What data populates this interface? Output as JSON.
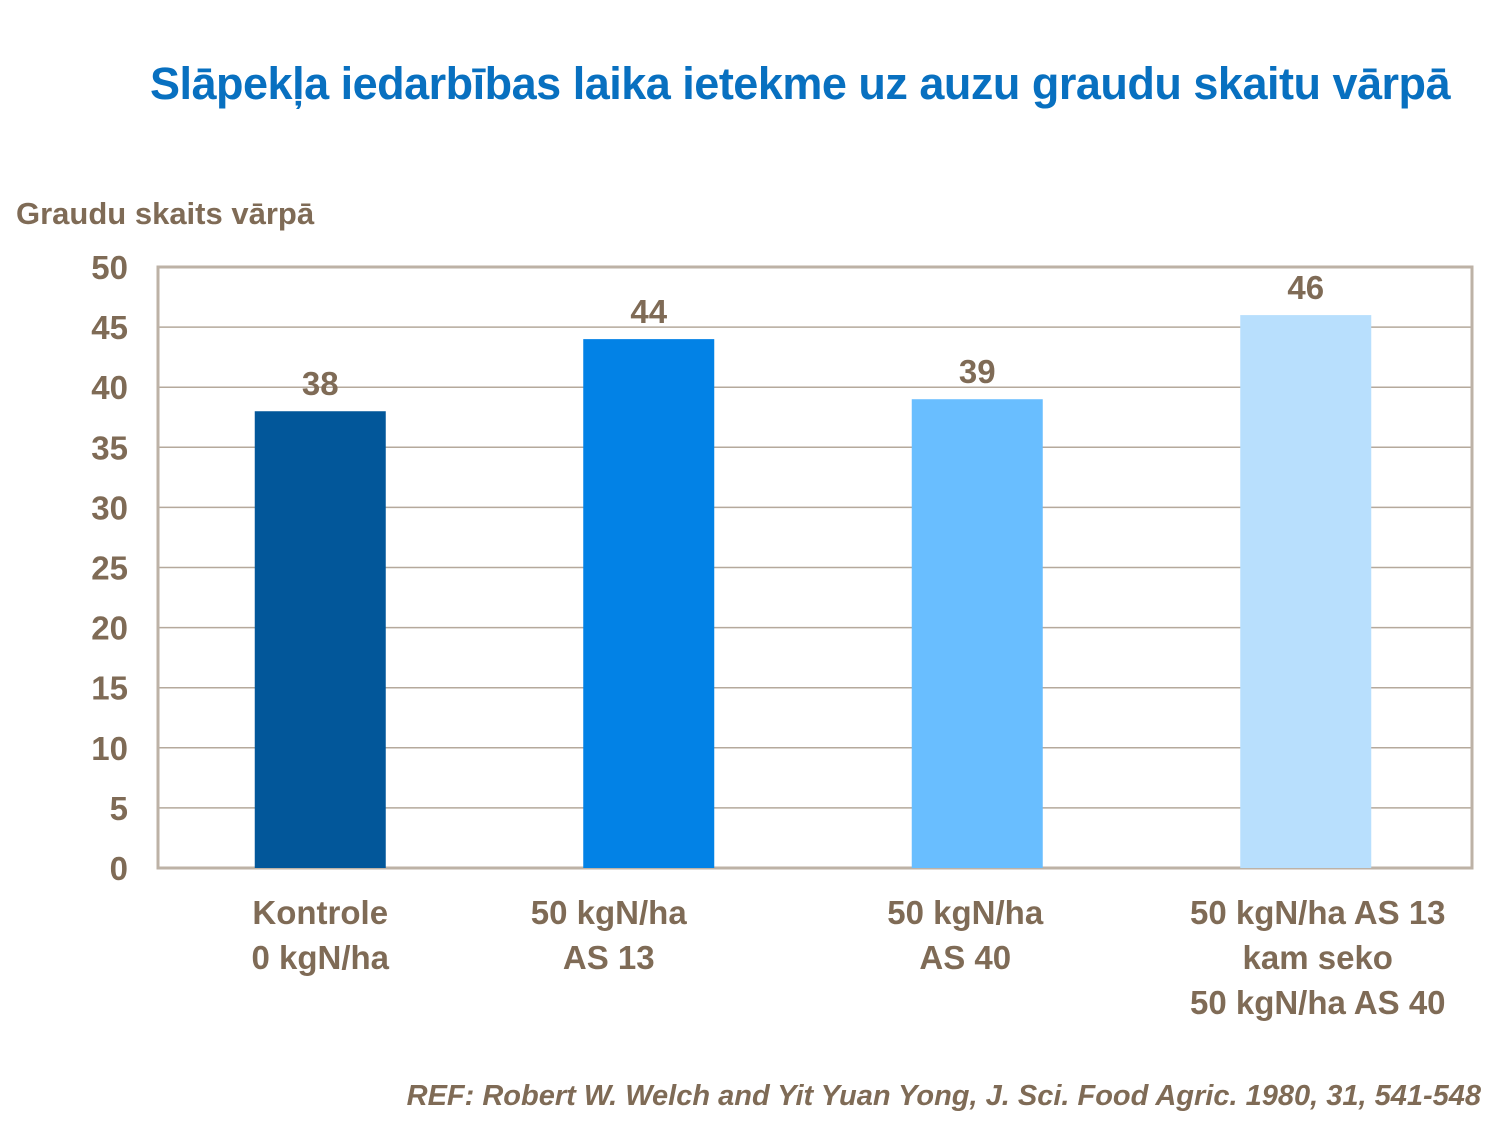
{
  "chart_data": {
    "type": "bar",
    "title": "Slāpekļa iedarbības laika ietekme uz auzu graudu skaitu vārpā",
    "ylabel": "Graudu skaits vārpā",
    "xlabel": "",
    "categories": [
      [
        "Kontrole",
        "0 kgN/ha"
      ],
      [
        "50 kgN/ha",
        "AS 13"
      ],
      [
        "50 kgN/ha",
        "AS 40"
      ],
      [
        "50 kgN/ha AS 13",
        "kam seko",
        "50 kgN/ha AS 40"
      ]
    ],
    "values": [
      38,
      44,
      39,
      46
    ],
    "data_labels": [
      "38",
      "44",
      "39",
      "46"
    ],
    "bar_colors": [
      "#02579a",
      "#0282e6",
      "#69beff",
      "#b8dffd"
    ],
    "ylim": [
      0,
      50
    ],
    "yticks": [
      0,
      5,
      10,
      15,
      20,
      25,
      30,
      35,
      40,
      45,
      50
    ],
    "grid": true,
    "legend": "none"
  },
  "reference": "REF: Robert W. Welch and Yit Yuan Yong, J. Sci. Food Agric. 1980, 31, 541-548",
  "colors": {
    "title": "#0870c0",
    "text": "#7f6b56",
    "grid": "#b5a99c",
    "frame": "#bdb2a6"
  }
}
